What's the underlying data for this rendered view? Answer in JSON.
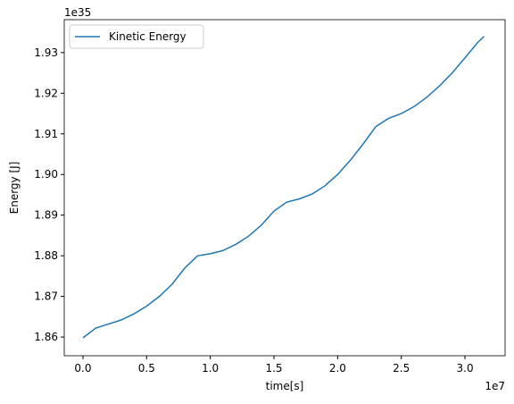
{
  "chart_data": {
    "type": "line",
    "xlabel": "time[s]",
    "ylabel": "Energy [J]",
    "x_offset": "1e7",
    "y_offset": "1e35",
    "x": [
      0.0,
      0.1,
      0.2,
      0.3,
      0.4,
      0.5,
      0.6,
      0.7,
      0.8,
      0.9,
      1.0,
      1.1,
      1.2,
      1.3,
      1.4,
      1.5,
      1.6,
      1.7,
      1.8,
      1.9,
      2.0,
      2.1,
      2.2,
      2.3,
      2.4,
      2.5,
      2.6,
      2.7,
      2.8,
      2.9,
      3.0,
      3.1,
      3.15
    ],
    "series": [
      {
        "name": "Kinetic Energy",
        "color": "#1f77b4",
        "values": [
          1.8598,
          1.8622,
          1.8632,
          1.8642,
          1.8657,
          1.8676,
          1.87,
          1.873,
          1.877,
          1.88,
          1.8805,
          1.8813,
          1.8828,
          1.8848,
          1.8875,
          1.891,
          1.8932,
          1.894,
          1.8952,
          1.8972,
          1.9,
          1.9035,
          1.9075,
          1.9118,
          1.9138,
          1.915,
          1.9167,
          1.919,
          1.9218,
          1.925,
          1.9287,
          1.9325,
          1.934
        ]
      }
    ],
    "xlim": [
      -0.147,
      3.315
    ],
    "ylim": [
      1.8554,
      1.9381
    ],
    "xticks": [
      {
        "value": 0,
        "label": "0.0"
      },
      0.5,
      {
        "value": 1,
        "label": "1.0"
      },
      1.5,
      {
        "value": 2,
        "label": "2.0"
      },
      2.5,
      {
        "value": 3,
        "label": "3.0"
      }
    ],
    "yticks": [
      1.86,
      1.87,
      1.88,
      1.89,
      {
        "value": 1.9,
        "label": "1.90"
      },
      1.91,
      1.92,
      1.93
    ],
    "legend": "upper left",
    "grid": false
  }
}
